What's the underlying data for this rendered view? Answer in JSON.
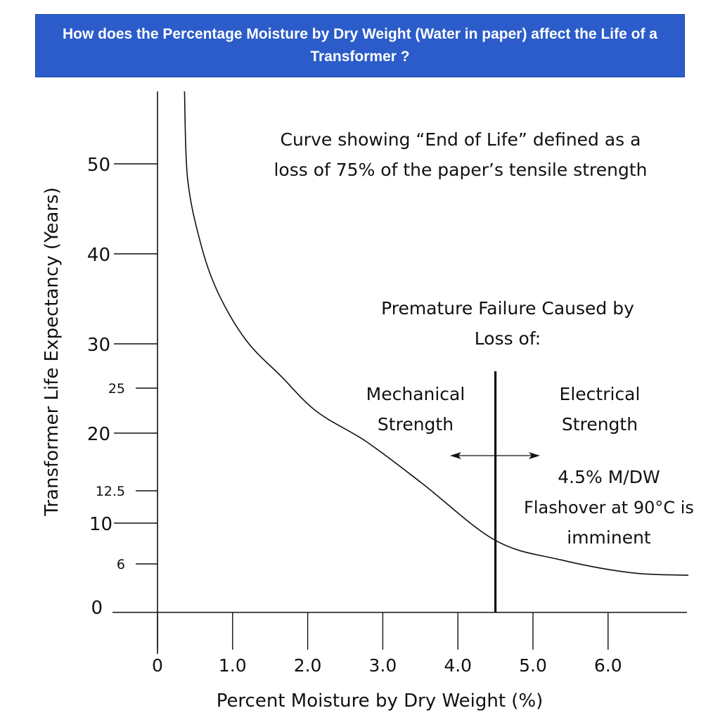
{
  "title": "How does the Percentage Moisture by Dry Weight (Water in paper) affect the Life of a Transformer ?",
  "chart_data": {
    "type": "line",
    "title": "How does the Percentage Moisture by Dry Weight (Water in paper) affect the Life of a Transformer ?",
    "xlabel": "Percent Moisture by Dry Weight (%)",
    "ylabel": "Transformer Life Expectancy (Years)",
    "x_ticks": [
      {
        "value": 0,
        "label": "0"
      },
      {
        "value": 1,
        "label": "1.0"
      },
      {
        "value": 2,
        "label": "2.0"
      },
      {
        "value": 3,
        "label": "3.0"
      },
      {
        "value": 4,
        "label": "4.0"
      },
      {
        "value": 5,
        "label": "5.0"
      },
      {
        "value": 6,
        "label": "6.0"
      }
    ],
    "y_ticks": [
      {
        "value": 50,
        "label": "50",
        "major": true
      },
      {
        "value": 40,
        "label": "40",
        "major": true
      },
      {
        "value": 30,
        "label": "30",
        "major": true
      },
      {
        "value": 25,
        "label": "25",
        "major": false
      },
      {
        "value": 20,
        "label": "20",
        "major": true
      },
      {
        "value": 12.5,
        "label": "12.5",
        "major": false
      },
      {
        "value": 10,
        "label": "10",
        "major": true
      },
      {
        "value": 6,
        "label": "6",
        "major": false
      },
      {
        "value": 0,
        "label": "0",
        "major": true
      }
    ],
    "xlim": [
      0,
      7.1
    ],
    "ylim": [
      0,
      57
    ],
    "grid": false,
    "series": [
      {
        "name": "End of Life curve",
        "x": [
          0.36,
          0.4,
          0.57,
          0.8,
          1.18,
          1.65,
          2.12,
          2.78,
          3.52,
          4.5,
          5.37,
          6.31,
          7.07
        ],
        "y": [
          57,
          48.4,
          41.3,
          35.8,
          30.4,
          26.3,
          22.4,
          18.9,
          13.5,
          8.3,
          6.4,
          4.9,
          4.6
        ]
      }
    ],
    "threshold": {
      "x": 4.5,
      "label": "4.5% M/DW"
    },
    "annotations": {
      "curve_note_line1": "Curve showing “End of Life” defined as a",
      "curve_note_line2": "loss of 75% of the paper’s tensile strength",
      "failure_line1": "Premature Failure Caused by",
      "failure_line2": "Loss of:",
      "mechanical_line1": "Mechanical",
      "mechanical_line2": "Strength",
      "electrical_line1": "Electrical",
      "electrical_line2": "Strength",
      "threshold_line1": "4.5% M/DW",
      "threshold_line2": "Flashover at 90°C is",
      "threshold_line3": "imminent"
    }
  }
}
